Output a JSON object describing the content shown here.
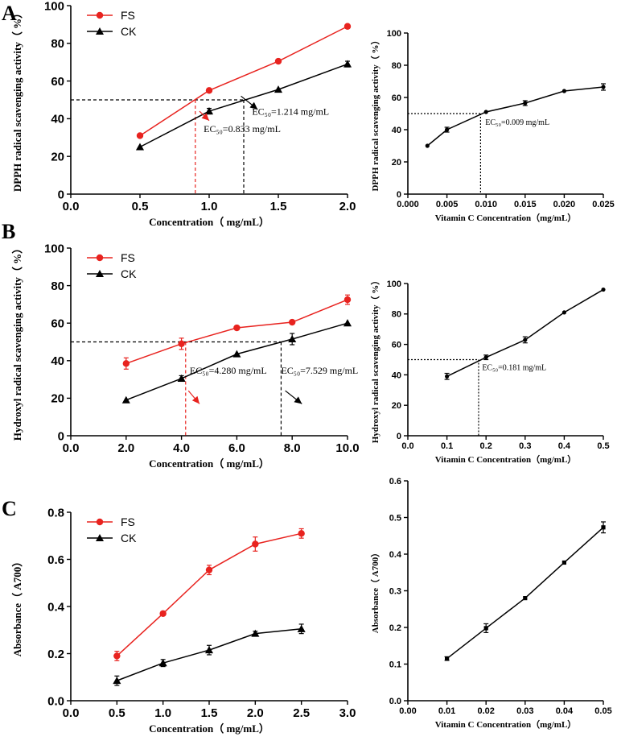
{
  "panel_letters": [
    "A",
    "B",
    "C"
  ],
  "colors": {
    "fs": "#e8231f",
    "ck": "#000000",
    "axis": "#000000"
  },
  "chart_data": [
    {
      "id": "A-left",
      "type": "line",
      "title": "",
      "xlabel": "Concentration（ mg/mL）",
      "ylabel": "DPPH radical scavenging activity（ %）",
      "xlim": [
        0,
        2
      ],
      "ylim": [
        0,
        100
      ],
      "xticks": [
        0,
        0.5,
        1,
        1.5,
        2
      ],
      "xtick_labels": [
        "0.0",
        "0.5",
        "1.0",
        "1.5",
        "2.0"
      ],
      "yticks": [
        0,
        20,
        40,
        60,
        80,
        100
      ],
      "ytick_labels": [
        "0",
        "20",
        "40",
        "60",
        "80",
        "100"
      ],
      "series": [
        {
          "name": "FS",
          "marker": "circle",
          "color": "#e8231f",
          "x": [
            0.5,
            1.0,
            1.5,
            2.0
          ],
          "y": [
            31,
            55,
            70.5,
            89
          ],
          "err": [
            0,
            0,
            0,
            0
          ]
        },
        {
          "name": "CK",
          "marker": "triangle",
          "color": "#000000",
          "x": [
            0.5,
            1.0,
            1.5,
            2.0
          ],
          "y": [
            25,
            44,
            55.5,
            69
          ],
          "err": [
            0,
            1.5,
            0,
            1.5
          ]
        }
      ],
      "legend": {
        "position": "top-left"
      },
      "threshold": 50,
      "ec_lines": [
        {
          "x": 0.9,
          "color": "#e8231f"
        },
        {
          "x": 1.25,
          "color": "#000000"
        }
      ],
      "annotations": [
        {
          "text": "EC₅₀=0.833 mg/mL",
          "at": [
            0.96,
            33
          ],
          "arrow_from": [
            0.93,
            44
          ],
          "arrow_to": [
            1.0,
            39
          ],
          "arrow_color": "#e8231f"
        },
        {
          "text": "EC₅₀=1.214 mg/mL",
          "at": [
            1.31,
            42
          ],
          "arrow_from": [
            1.23,
            52
          ],
          "arrow_to": [
            1.35,
            45
          ],
          "arrow_color": "#000000"
        }
      ]
    },
    {
      "id": "A-right",
      "type": "line",
      "xlabel": "Vitamin C Concentration（mg/mL）",
      "ylabel": "DPPH radical scavenging activity（ %）",
      "xlim": [
        0,
        0.025
      ],
      "ylim": [
        0,
        100
      ],
      "xticks": [
        0,
        0.005,
        0.01,
        0.015,
        0.02,
        0.025
      ],
      "xtick_labels": [
        "0.000",
        "0.005",
        "0.010",
        "0.015",
        "0.020",
        "0.025"
      ],
      "yticks": [
        0,
        20,
        40,
        60,
        80,
        100
      ],
      "ytick_labels": [
        "0",
        "20",
        "40",
        "60",
        "80",
        "100"
      ],
      "series": [
        {
          "name": "Vitamin C",
          "marker": "circle",
          "color": "#000000",
          "x": [
            0.0025,
            0.005,
            0.01,
            0.015,
            0.02,
            0.025
          ],
          "y": [
            30,
            40,
            51,
            56.5,
            64,
            66.5
          ],
          "err": [
            0,
            1.5,
            0,
            1.5,
            0,
            2
          ]
        }
      ],
      "threshold": 50,
      "ec_lines": [
        {
          "x": 0.0093,
          "color": "#000000"
        }
      ],
      "annotations": [
        {
          "text": "EC₅₀=0.009 mg/mL",
          "at": [
            0.0099,
            43
          ]
        }
      ]
    },
    {
      "id": "B-left",
      "type": "line",
      "xlabel": "Concentration（ mg/mL）",
      "ylabel": "Hydroxyl radical scavenging activity（ %）",
      "xlim": [
        0,
        10
      ],
      "ylim": [
        0,
        100
      ],
      "xticks": [
        0,
        2,
        4,
        6,
        8,
        10
      ],
      "xtick_labels": [
        "0.0",
        "2.0",
        "4.0",
        "6.0",
        "8.0",
        "10.0"
      ],
      "yticks": [
        0,
        20,
        40,
        60,
        80,
        100
      ],
      "ytick_labels": [
        "0",
        "20",
        "40",
        "60",
        "80",
        "100"
      ],
      "series": [
        {
          "name": "FS",
          "marker": "circle",
          "color": "#e8231f",
          "x": [
            2,
            4,
            6,
            8,
            10
          ],
          "y": [
            38.5,
            49,
            57.5,
            60.5,
            72.5
          ],
          "err": [
            3,
            3,
            0,
            0,
            2.5
          ]
        },
        {
          "name": "CK",
          "marker": "triangle",
          "color": "#000000",
          "x": [
            2,
            4,
            6,
            8,
            10
          ],
          "y": [
            19,
            30.5,
            43.5,
            51.5,
            60
          ],
          "err": [
            0,
            1.5,
            0,
            3,
            0
          ]
        }
      ],
      "legend": {
        "position": "top-left"
      },
      "threshold": 50,
      "ec_lines": [
        {
          "x": 4.15,
          "color": "#e8231f"
        },
        {
          "x": 7.6,
          "color": "#000000"
        }
      ],
      "annotations": [
        {
          "text": "EC₅₀=4.280 mg/mL",
          "at": [
            4.3,
            33
          ],
          "arrow_from": [
            4.25,
            24
          ],
          "arrow_to": [
            4.65,
            17
          ],
          "arrow_color": "#e8231f"
        },
        {
          "text": "EC₅₀=7.529 mg/mL",
          "at": [
            7.6,
            33
          ],
          "arrow_from": [
            7.75,
            24
          ],
          "arrow_to": [
            8.35,
            17
          ],
          "arrow_color": "#000000"
        }
      ]
    },
    {
      "id": "B-right",
      "type": "line",
      "xlabel": "Vitamin C Concentration（mg/mL）",
      "ylabel": "Hydroxyl radical scavenging activity（ %）",
      "xlim": [
        0,
        0.5
      ],
      "ylim": [
        0,
        100
      ],
      "xticks": [
        0,
        0.1,
        0.2,
        0.3,
        0.4,
        0.5
      ],
      "xtick_labels": [
        "0.0",
        "0.1",
        "0.2",
        "0.3",
        "0.4",
        "0.5"
      ],
      "yticks": [
        0,
        20,
        40,
        60,
        80,
        100
      ],
      "ytick_labels": [
        "0",
        "20",
        "40",
        "60",
        "80",
        "100"
      ],
      "series": [
        {
          "name": "Vitamin C",
          "marker": "circle",
          "color": "#000000",
          "x": [
            0.1,
            0.2,
            0.3,
            0.4,
            0.5
          ],
          "y": [
            39,
            51.5,
            63,
            81,
            96
          ],
          "err": [
            2,
            1.5,
            2,
            0,
            0
          ]
        }
      ],
      "threshold": 50,
      "ec_lines": [
        {
          "x": 0.181,
          "color": "#000000"
        }
      ],
      "annotations": [
        {
          "text": "EC₅₀=0.181 mg/mL",
          "at": [
            0.19,
            43
          ]
        }
      ]
    },
    {
      "id": "C-left",
      "type": "line",
      "xlabel": "Concentration（ mg/mL）",
      "ylabel": "Absorbance（ A700）",
      "xlim": [
        0,
        3
      ],
      "ylim": [
        0,
        0.8
      ],
      "xticks": [
        0,
        0.5,
        1,
        1.5,
        2,
        2.5,
        3
      ],
      "xtick_labels": [
        "0.0",
        "0.5",
        "1.0",
        "1.5",
        "2.0",
        "2.5",
        "3.0"
      ],
      "yticks": [
        0,
        0.2,
        0.4,
        0.6,
        0.8
      ],
      "ytick_labels": [
        "0.0",
        "0.2",
        "0.4",
        "0.6",
        "0.8"
      ],
      "series": [
        {
          "name": "FS",
          "marker": "circle",
          "color": "#e8231f",
          "x": [
            0.5,
            1.0,
            1.5,
            2.0,
            2.5
          ],
          "y": [
            0.19,
            0.37,
            0.555,
            0.665,
            0.71
          ],
          "err": [
            0.02,
            0,
            0.02,
            0.03,
            0.02
          ]
        },
        {
          "name": "CK",
          "marker": "triangle",
          "color": "#000000",
          "x": [
            0.5,
            1.0,
            1.5,
            2.0,
            2.5
          ],
          "y": [
            0.085,
            0.16,
            0.215,
            0.285,
            0.305
          ],
          "err": [
            0.02,
            0.015,
            0.02,
            0.01,
            0.02
          ]
        }
      ],
      "legend": {
        "position": "top-left"
      }
    },
    {
      "id": "C-right",
      "type": "line",
      "xlabel": "Vitamin C Concentration（mg/mL）",
      "ylabel": "Absorbance（ A700）",
      "xlim": [
        0,
        0.05
      ],
      "ylim": [
        0,
        0.6
      ],
      "xticks": [
        0,
        0.01,
        0.02,
        0.03,
        0.04,
        0.05
      ],
      "xtick_labels": [
        "0.00",
        "0.01",
        "0.02",
        "0.03",
        "0.04",
        "0.05"
      ],
      "yticks": [
        0,
        0.1,
        0.2,
        0.3,
        0.4,
        0.5,
        0.6
      ],
      "ytick_labels": [
        "0.0",
        "0.1",
        "0.2",
        "0.3",
        "0.4",
        "0.5",
        "0.6"
      ],
      "series": [
        {
          "name": "Vitamin C",
          "marker": "square",
          "color": "#000000",
          "x": [
            0.01,
            0.02,
            0.03,
            0.04,
            0.05
          ],
          "y": [
            0.115,
            0.198,
            0.28,
            0.377,
            0.473
          ],
          "err": [
            0.005,
            0.012,
            0,
            0,
            0.015
          ]
        }
      ]
    }
  ]
}
